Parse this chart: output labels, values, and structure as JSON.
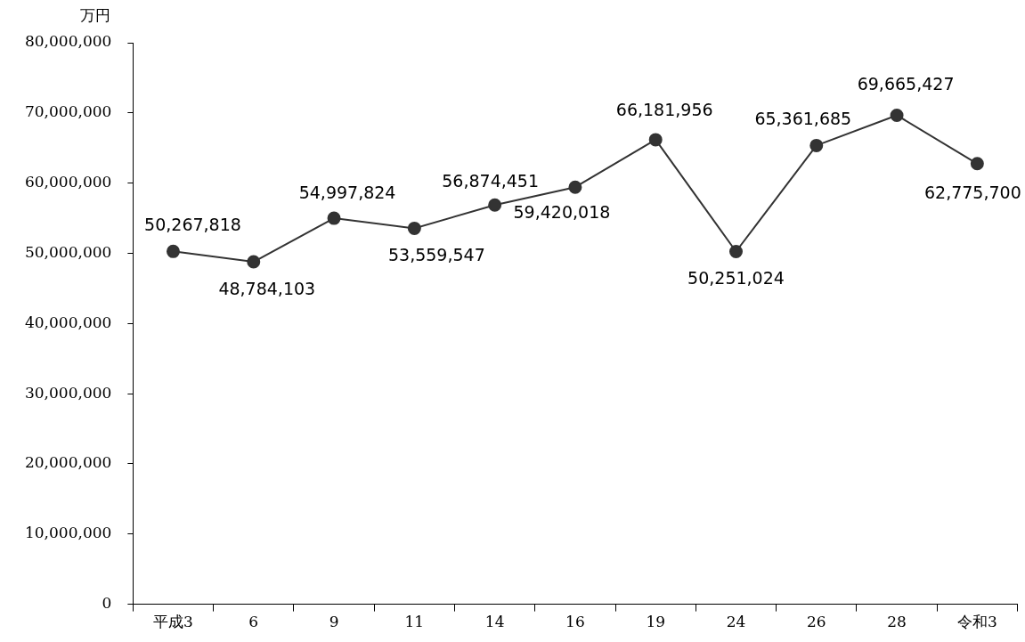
{
  "chart_data": {
    "type": "line",
    "ylabel": "万円",
    "categories": [
      "平成3",
      "6",
      "9",
      "11",
      "14",
      "16",
      "19",
      "24",
      "26",
      "28",
      "令和3"
    ],
    "series": [
      {
        "color": "#333333",
        "values": [
          50267818,
          48784103,
          54997824,
          53559547,
          56874451,
          59420018,
          66181956,
          50251024,
          65361685,
          69665427,
          62775700
        ],
        "value_labels": [
          "50,267,818",
          "48,784,103",
          "54,997,824",
          "53,559,547",
          "56,874,451",
          "59,420,018",
          "66,181,956",
          "50,251,024",
          "65,361,685",
          "69,665,427",
          "62,775,700"
        ]
      }
    ],
    "ylim": [
      0,
      80000000
    ],
    "yticks": [
      0,
      {
        "value": 10000000,
        "label": "10,000,000"
      },
      {
        "value": 20000000,
        "label": "20,000,000"
      },
      {
        "value": 30000000,
        "label": "30,000,000"
      },
      {
        "value": 40000000,
        "label": "40,000,000"
      },
      {
        "value": 50000000,
        "label": "50,000,000"
      },
      {
        "value": 60000000,
        "label": "60,000,000"
      },
      {
        "value": 70000000,
        "label": "70,000,000"
      },
      {
        "value": 80000000,
        "label": "80,000,000"
      }
    ],
    "grid": false,
    "legend": false,
    "marker": "circle",
    "line_style": "solid"
  }
}
